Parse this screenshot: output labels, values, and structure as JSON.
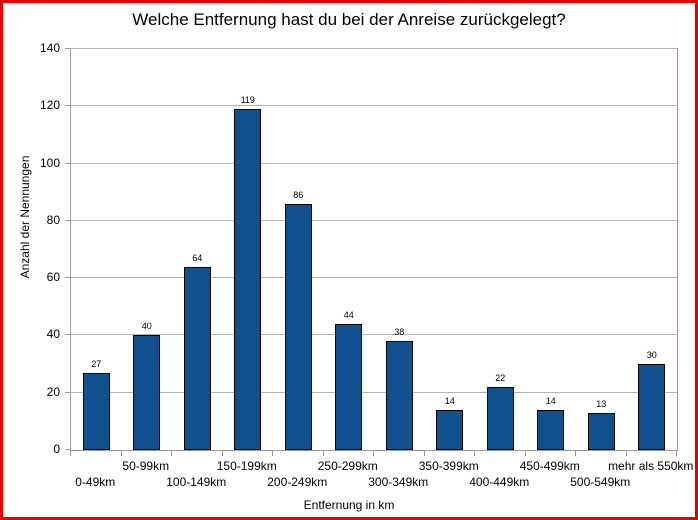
{
  "figure": {
    "background_color": "#ffffff",
    "frame_border_color": "#e80000"
  },
  "chart_data": {
    "type": "bar",
    "title": "Welche Entfernung hast du bei der Anreise zurückgelegt?",
    "categories": [
      "0-49km",
      "50-99km",
      "100-149km",
      "150-199km",
      "200-249km",
      "250-299km",
      "300-349km",
      "350-399km",
      "400-449km",
      "450-499km",
      "500-549km",
      "mehr als 550km"
    ],
    "values": [
      27,
      40,
      64,
      119,
      86,
      44,
      38,
      14,
      22,
      14,
      13,
      30
    ],
    "xlabel": "Entfernung in km",
    "ylabel": "Anzahl der Nennungen",
    "ylim": [
      0,
      140
    ],
    "yticks": [
      0,
      20,
      40,
      60,
      80,
      100,
      120,
      140
    ],
    "grid": true,
    "legend": "none",
    "data_labels": true,
    "x_label_layout": "staggered-two-rows-odd-indices-upper",
    "colors": {
      "bar_fill": "#11508f",
      "bar_border": "#000000",
      "gridline": "#b3b3b3",
      "axis": "#9b9b9b",
      "text": "#000000"
    }
  }
}
